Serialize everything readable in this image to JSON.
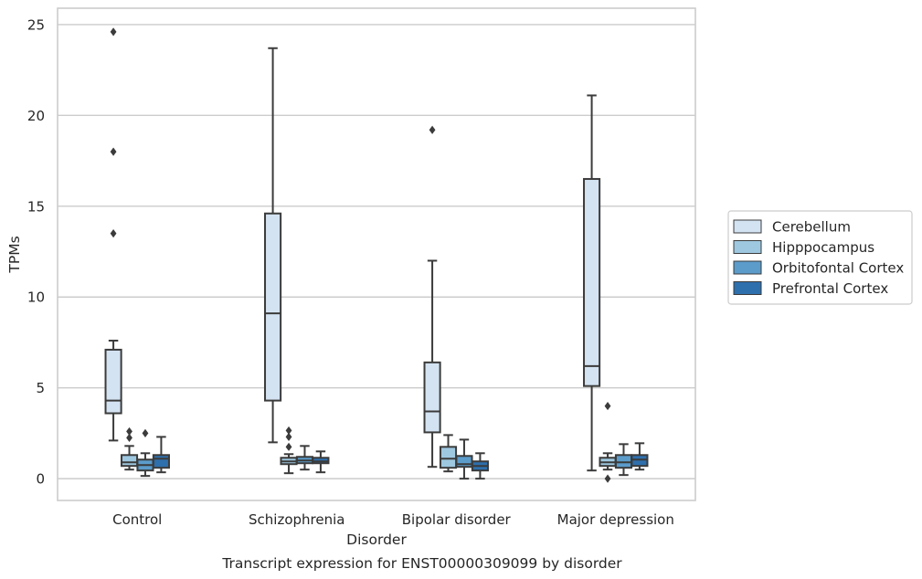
{
  "chart_data": {
    "type": "boxplot",
    "caption": "Transcript expression for ENST00000309099 by disorder",
    "xlabel": "Disorder",
    "ylabel": "TPMs",
    "ylim": [
      -1.2,
      25.9
    ],
    "yticks": [
      0,
      5,
      10,
      15,
      20,
      25
    ],
    "grid": "horizontal",
    "legend_position": "right",
    "categories": [
      "Control",
      "Schizophrenia",
      "Bipolar disorder",
      "Major depression"
    ],
    "series": [
      {
        "name": "Cerebellum",
        "color": "#d4e3f2",
        "boxes": [
          {
            "whislo": 2.1,
            "q1": 3.6,
            "med": 4.3,
            "q3": 7.1,
            "whishi": 7.6,
            "fliers": [
              13.5,
              18.0,
              24.6
            ]
          },
          {
            "whislo": 2.0,
            "q1": 4.3,
            "med": 9.1,
            "q3": 14.6,
            "whishi": 23.7,
            "fliers": []
          },
          {
            "whislo": 0.65,
            "q1": 2.55,
            "med": 3.7,
            "q3": 6.4,
            "whishi": 12.0,
            "fliers": [
              19.2
            ]
          },
          {
            "whislo": 0.45,
            "q1": 5.1,
            "med": 6.2,
            "q3": 16.5,
            "whishi": 21.1,
            "fliers": []
          }
        ]
      },
      {
        "name": "Hipppocampus",
        "color": "#9ec8e0",
        "boxes": [
          {
            "whislo": 0.5,
            "q1": 0.7,
            "med": 0.9,
            "q3": 1.3,
            "whishi": 1.8,
            "fliers": [
              2.25,
              2.6
            ]
          },
          {
            "whislo": 0.3,
            "q1": 0.8,
            "med": 0.95,
            "q3": 1.15,
            "whishi": 1.35,
            "fliers": [
              1.75,
              2.3,
              2.65
            ]
          },
          {
            "whislo": 0.4,
            "q1": 0.6,
            "med": 1.1,
            "q3": 1.75,
            "whishi": 2.4,
            "fliers": []
          },
          {
            "whislo": 0.5,
            "q1": 0.7,
            "med": 0.9,
            "q3": 1.15,
            "whishi": 1.4,
            "fliers": [
              0.0,
              4.0
            ]
          }
        ]
      },
      {
        "name": "Orbitofontal Cortex",
        "color": "#5b9ccb",
        "boxes": [
          {
            "whislo": 0.15,
            "q1": 0.45,
            "med": 0.75,
            "q3": 1.05,
            "whishi": 1.4,
            "fliers": [
              2.5
            ]
          },
          {
            "whislo": 0.5,
            "q1": 0.85,
            "med": 1.0,
            "q3": 1.2,
            "whishi": 1.8,
            "fliers": []
          },
          {
            "whislo": 0.0,
            "q1": 0.65,
            "med": 0.8,
            "q3": 1.25,
            "whishi": 2.15,
            "fliers": []
          },
          {
            "whislo": 0.2,
            "q1": 0.6,
            "med": 0.9,
            "q3": 1.3,
            "whishi": 1.9,
            "fliers": []
          }
        ]
      },
      {
        "name": "Prefrontal Cortex",
        "color": "#2e6fad",
        "boxes": [
          {
            "whislo": 0.35,
            "q1": 0.6,
            "med": 1.1,
            "q3": 1.3,
            "whishi": 2.3,
            "fliers": []
          },
          {
            "whislo": 0.35,
            "q1": 0.85,
            "med": 0.95,
            "q3": 1.15,
            "whishi": 1.5,
            "fliers": []
          },
          {
            "whislo": 0.0,
            "q1": 0.45,
            "med": 0.7,
            "q3": 0.95,
            "whishi": 1.4,
            "fliers": []
          },
          {
            "whislo": 0.5,
            "q1": 0.7,
            "med": 1.05,
            "q3": 1.3,
            "whishi": 1.95,
            "fliers": []
          }
        ]
      }
    ]
  }
}
